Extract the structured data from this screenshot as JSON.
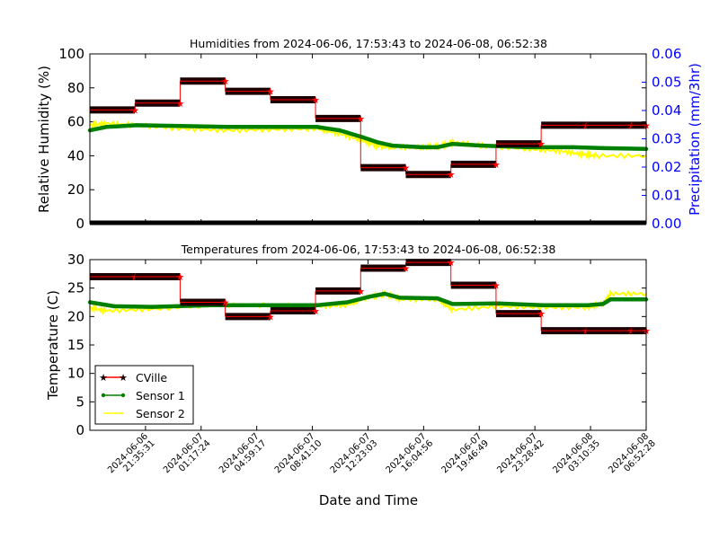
{
  "figure": {
    "xlabel": "Date and Time"
  },
  "colors": {
    "cville_line": "#ff0000",
    "cville_marker": "#1a0000",
    "sensor1": "#008000",
    "sensor2": "#ffff00",
    "precip_axis": "#0000ff",
    "precip_line": "#000000"
  },
  "chart_data": [
    {
      "type": "line",
      "title": "Humidities from 2024-06-06, 17:53:43 to 2024-06-08, 06:52:38",
      "ylabel": "Relative Humidity (%)",
      "ylim": [
        0,
        100
      ],
      "yticks": [
        "0",
        "20",
        "40",
        "60",
        "80",
        "100"
      ],
      "y2label": "Precipitation (mm/3hr)",
      "y2lim": [
        0,
        0.06
      ],
      "y2ticks": [
        "0.00",
        "0.01",
        "0.02",
        "0.03",
        "0.04",
        "0.05",
        "0.06"
      ],
      "xlim": [
        "2024-06-06 17:53:43",
        "2024-06-08 06:52:38"
      ],
      "series": [
        {
          "name": "CVille",
          "x": [
            "2024-06-06 17:53:43",
            "2024-06-06 20:53:43",
            "2024-06-06 23:53:43",
            "2024-06-07 02:53:43",
            "2024-06-07 05:53:43",
            "2024-06-07 08:53:43",
            "2024-06-07 11:53:43",
            "2024-06-07 14:53:43",
            "2024-06-07 17:53:43",
            "2024-06-07 20:53:43",
            "2024-06-07 23:53:43",
            "2024-06-08 02:53:43",
            "2024-06-08 05:53:43"
          ],
          "values": [
            67,
            71,
            84,
            78,
            73,
            62,
            33,
            29,
            35,
            47,
            58,
            58,
            58
          ]
        },
        {
          "name": "Sensor 1",
          "x": [
            "2024-06-06 17:53:43",
            "2024-06-06 19:00",
            "2024-06-06 21:00",
            "2024-06-07 00:00",
            "2024-06-07 03:00",
            "2024-06-07 06:00",
            "2024-06-07 09:00",
            "2024-06-07 10:30",
            "2024-06-07 12:00",
            "2024-06-07 13:00",
            "2024-06-07 14:00",
            "2024-06-07 16:00",
            "2024-06-07 17:00",
            "2024-06-07 18:00",
            "2024-06-07 20:00",
            "2024-06-07 23:00",
            "2024-06-08 02:00",
            "2024-06-08 04:00",
            "2024-06-08 06:52:38"
          ],
          "values": [
            55,
            57,
            58,
            57.5,
            57,
            57,
            57,
            55,
            51,
            48,
            46,
            45,
            45,
            47,
            46,
            45,
            45,
            44.5,
            44
          ]
        },
        {
          "name": "Sensor 2",
          "x": [
            "2024-06-06 17:53:43",
            "2024-06-06 19:00",
            "2024-06-06 21:00",
            "2024-06-07 00:00",
            "2024-06-07 03:00",
            "2024-06-07 06:00",
            "2024-06-07 09:00",
            "2024-06-07 10:30",
            "2024-06-07 12:00",
            "2024-06-07 13:00",
            "2024-06-07 14:00",
            "2024-06-07 16:00",
            "2024-06-07 17:00",
            "2024-06-07 18:00",
            "2024-06-07 20:00",
            "2024-06-07 23:00",
            "2024-06-08 01:00",
            "2024-06-08 02:30",
            "2024-06-08 03:30",
            "2024-06-08 06:52:38"
          ],
          "values": [
            58,
            59,
            58,
            56,
            55,
            55.5,
            56,
            53,
            49,
            46,
            45,
            45,
            45,
            48,
            46,
            44,
            43,
            41,
            40,
            40
          ]
        },
        {
          "name": "Precipitation",
          "x": [
            "2024-06-06 17:53:43",
            "2024-06-08 06:52:38"
          ],
          "values": [
            0,
            0
          ]
        }
      ]
    },
    {
      "type": "line",
      "title": "Temperatures from 2024-06-06, 17:53:43 to 2024-06-08, 06:52:38",
      "ylabel": "Temperature (C)",
      "ylim": [
        0,
        30
      ],
      "yticks": [
        "0",
        "5",
        "10",
        "15",
        "20",
        "25",
        "30"
      ],
      "xlim": [
        "2024-06-06 17:53:43",
        "2024-06-08 06:52:38"
      ],
      "xticks": [
        {
          "x": "2024-06-06 21:35:31",
          "label": [
            "2024-06-06",
            "21:35:31"
          ]
        },
        {
          "x": "2024-06-07 01:17:24",
          "label": [
            "2024-06-07",
            "01:17:24"
          ]
        },
        {
          "x": "2024-06-07 04:59:17",
          "label": [
            "2024-06-07",
            "04:59:17"
          ]
        },
        {
          "x": "2024-06-07 08:41:10",
          "label": [
            "2024-06-07",
            "08:41:10"
          ]
        },
        {
          "x": "2024-06-07 12:23:03",
          "label": [
            "2024-06-07",
            "12:23:03"
          ]
        },
        {
          "x": "2024-06-07 16:04:56",
          "label": [
            "2024-06-07",
            "16:04:56"
          ]
        },
        {
          "x": "2024-06-07 19:46:49",
          "label": [
            "2024-06-07",
            "19:46:49"
          ]
        },
        {
          "x": "2024-06-07 23:28:42",
          "label": [
            "2024-06-07",
            "23:28:42"
          ]
        },
        {
          "x": "2024-06-08 03:10:35",
          "label": [
            "2024-06-08",
            "03:10:35"
          ]
        },
        {
          "x": "2024-06-08 06:52:28",
          "label": [
            "2024-06-08",
            "06:52:28"
          ]
        }
      ],
      "legend": {
        "position": "lower-left",
        "entries": [
          "CVille",
          "Sensor 1",
          "Sensor 2"
        ]
      },
      "series": [
        {
          "name": "CVille",
          "x": [
            "2024-06-06 17:53:43",
            "2024-06-06 20:53:43",
            "2024-06-06 23:53:43",
            "2024-06-07 02:53:43",
            "2024-06-07 05:53:43",
            "2024-06-07 08:53:43",
            "2024-06-07 11:53:43",
            "2024-06-07 14:53:43",
            "2024-06-07 17:53:43",
            "2024-06-07 20:53:43",
            "2024-06-07 23:53:43",
            "2024-06-08 02:53:43",
            "2024-06-08 05:53:43"
          ],
          "values": [
            27,
            27,
            22.5,
            20,
            21,
            24.5,
            28.5,
            29.5,
            25.5,
            20.5,
            17.5,
            17.5,
            17.5
          ]
        },
        {
          "name": "Sensor 1",
          "x": [
            "2024-06-06 17:53:43",
            "2024-06-06 19:30",
            "2024-06-06 22:00",
            "2024-06-07 02:00",
            "2024-06-07 06:00",
            "2024-06-07 09:00",
            "2024-06-07 11:00",
            "2024-06-07 12:30",
            "2024-06-07 13:30",
            "2024-06-07 14:30",
            "2024-06-07 17:00",
            "2024-06-07 18:00",
            "2024-06-07 21:00",
            "2024-06-08 00:00",
            "2024-06-08 03:00",
            "2024-06-08 04:00",
            "2024-06-08 04:30",
            "2024-06-08 06:52:38"
          ],
          "values": [
            22.5,
            21.8,
            21.7,
            22,
            22,
            22,
            22.5,
            23.5,
            24,
            23.3,
            23.2,
            22.2,
            22.3,
            22,
            22,
            22.2,
            23,
            23
          ]
        },
        {
          "name": "Sensor 2",
          "x": [
            "2024-06-06 17:53:43",
            "2024-06-06 19:00",
            "2024-06-06 22:00",
            "2024-06-07 02:00",
            "2024-06-07 06:00",
            "2024-06-07 09:00",
            "2024-06-07 11:00",
            "2024-06-07 12:30",
            "2024-06-07 13:30",
            "2024-06-07 14:30",
            "2024-06-07 17:00",
            "2024-06-07 18:00",
            "2024-06-07 21:00",
            "2024-06-08 00:00",
            "2024-06-08 03:00",
            "2024-06-08 04:00",
            "2024-06-08 04:30",
            "2024-06-08 06:52:38"
          ],
          "values": [
            21.5,
            21,
            21.3,
            22,
            22,
            21.8,
            22,
            23.5,
            24,
            23,
            23,
            21.2,
            21.8,
            21.6,
            21.6,
            22.2,
            24,
            24
          ]
        }
      ]
    }
  ]
}
